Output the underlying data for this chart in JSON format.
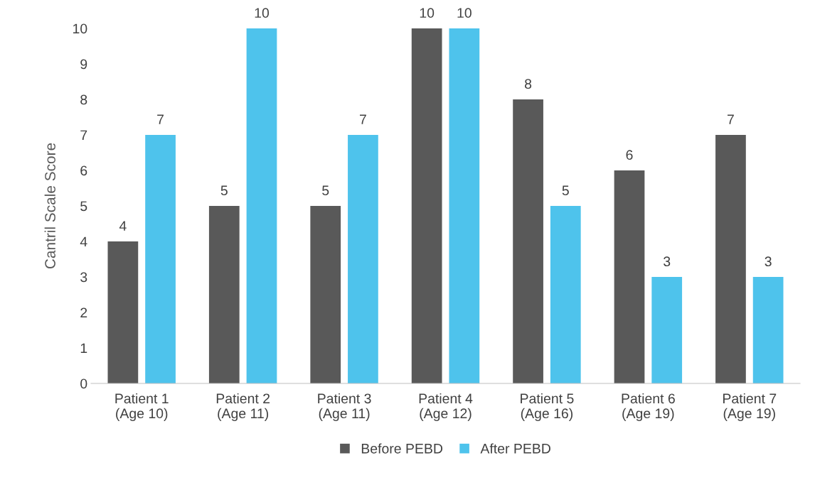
{
  "chart_data": {
    "type": "bar",
    "ylabel": "Cantril Scale Score",
    "categories": [
      "Patient 1\n(Age 10)",
      "Patient 2\n(Age 11)",
      "Patient 3\n(Age 11)",
      "Patient 4\n(Age 12)",
      "Patient 5\n(Age 16)",
      "Patient 6\n(Age 19)",
      "Patient 7\n(Age 19)"
    ],
    "series": [
      {
        "name": "Before PEBD",
        "color": "#595959",
        "values": [
          4,
          5,
          5,
          10,
          8,
          6,
          7
        ]
      },
      {
        "name": "After PEBD",
        "color": "#4ec3ec",
        "values": [
          7,
          10,
          7,
          10,
          5,
          3,
          3
        ]
      }
    ],
    "ylim": [
      0,
      10
    ],
    "yticks": [
      0,
      1,
      2,
      3,
      4,
      5,
      6,
      7,
      8,
      9,
      10
    ],
    "data_labels": true,
    "grid": false,
    "legend": "bottom"
  }
}
